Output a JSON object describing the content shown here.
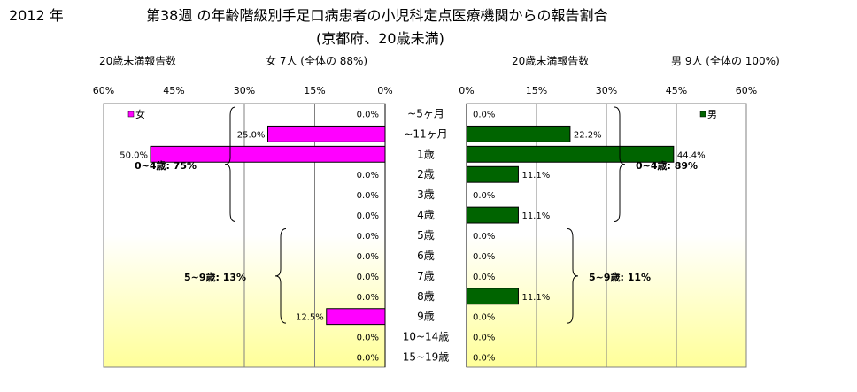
{
  "header": {
    "year": "2012 年",
    "title_line1": "第38週 の年齢階級別手足口病患者の小児科定点医療機関からの報告割合",
    "title_line2": "(京都府、20歳未満)",
    "left_count_label": "20歳未満報告数",
    "left_summary": "女 7人 (全体の 88%)",
    "right_count_label": "20歳未満報告数",
    "right_summary": "男 9人 (全体の 100%)"
  },
  "chart_data": {
    "type": "bar",
    "orientation": "horizontal",
    "layout": "population-pyramid",
    "categories": [
      "~5ヶ月",
      "~11ヶ月",
      "1歳",
      "2歳",
      "3歳",
      "4歳",
      "5歳",
      "6歳",
      "7歳",
      "8歳",
      "9歳",
      "10~14歳",
      "15~19歳"
    ],
    "xlim": [
      0,
      60
    ],
    "ticks": [
      "0%",
      "15%",
      "30%",
      "45%",
      "60%"
    ],
    "grid": true,
    "series": [
      {
        "name": "女",
        "color": "#ff00ff",
        "side": "left",
        "values": [
          0,
          25,
          50,
          0,
          0,
          0,
          0,
          0,
          0,
          0,
          12.5,
          0,
          0
        ],
        "labels": [
          "0.0%",
          "25.0%",
          "50.0%",
          "0.0%",
          "0.0%",
          "0.0%",
          "0.0%",
          "0.0%",
          "0.0%",
          "0.0%",
          "12.5%",
          "0.0%",
          "0.0%"
        ],
        "legend_label": "女",
        "group_annotations": [
          "0~4歳: 75%",
          "5~9歳: 13%"
        ]
      },
      {
        "name": "男",
        "color": "#006400",
        "side": "right",
        "values": [
          0,
          22.2,
          44.4,
          11.1,
          0,
          11.1,
          0,
          0,
          0,
          11.1,
          0,
          0,
          0
        ],
        "labels": [
          "0.0%",
          "22.2%",
          "44.4%",
          "11.1%",
          "0.0%",
          "11.1%",
          "0.0%",
          "0.0%",
          "0.0%",
          "11.1%",
          "0.0%",
          "0.0%",
          "0.0%"
        ],
        "legend_label": "男",
        "group_annotations": [
          "0~4歳: 89%",
          "5~9歳: 11%"
        ]
      }
    ]
  }
}
